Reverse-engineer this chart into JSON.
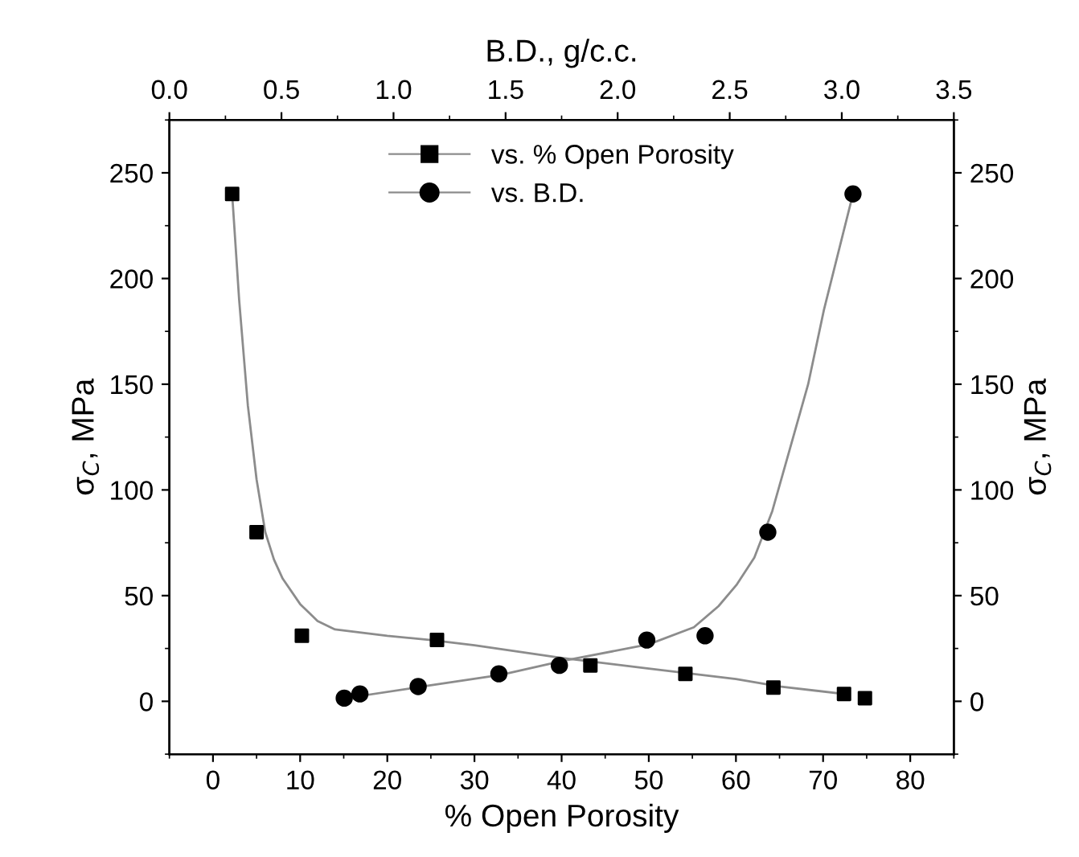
{
  "chart_data": {
    "type": "scatter",
    "xlabel": "% Open Porosity",
    "x2label": "B.D., g/c.c.",
    "ylabel": "σ$_{C}$, MPa",
    "y2label": "σ$_{C}$, MPa",
    "xlim": [
      -5,
      85
    ],
    "xticks": [
      0,
      10,
      20,
      30,
      40,
      50,
      60,
      70,
      80
    ],
    "x2lim": [
      0,
      3.5
    ],
    "x2ticks": [
      {
        "value": 0,
        "label": "0.0"
      },
      0.5,
      {
        "value": 1,
        "label": "1.0"
      },
      1.5,
      {
        "value": 2,
        "label": "2.0"
      },
      2.5,
      {
        "value": 3,
        "label": "3.0"
      },
      3.5
    ],
    "ylim": [
      -25,
      275
    ],
    "yticks": [
      0,
      50,
      100,
      150,
      200,
      250
    ],
    "y2lim": [
      -25,
      275
    ],
    "y2ticks": [
      0,
      50,
      100,
      150,
      200,
      250
    ],
    "legend": "top",
    "grid": false,
    "series": [
      {
        "name": "vs. % Open Porosity",
        "marker": "square",
        "color": "#000000",
        "x": [
          2.2,
          5,
          10.2,
          25.7,
          43.3,
          54.2,
          64.3,
          72.4,
          74.8
        ],
        "values": [
          240,
          80,
          31,
          29,
          17,
          13,
          6.5,
          3.5,
          1.5
        ]
      },
      {
        "name": "vs. B.D.",
        "marker": "circle",
        "axis": "x2",
        "color": "#000000",
        "x": [
          0.78,
          0.85,
          1.11,
          1.47,
          1.74,
          2.13,
          2.39,
          2.67,
          3.05
        ],
        "values": [
          1.5,
          3.5,
          7,
          13,
          17,
          29,
          31,
          80,
          240
        ]
      },
      {
        "type": "line",
        "color": "#8c8c8c",
        "x": [
          2.2,
          3,
          4,
          5,
          6,
          7,
          8,
          10,
          12,
          14,
          20,
          25,
          30,
          40,
          50,
          60,
          65,
          72.4
        ],
        "values": [
          240,
          190,
          140,
          105,
          80,
          67,
          58,
          46,
          38,
          34,
          31,
          29,
          26.5,
          20.5,
          15.5,
          10.5,
          7,
          3.5
        ]
      },
      {
        "type": "line",
        "axis": "x2",
        "color": "#8c8c8c",
        "x": [
          0.85,
          1.16,
          1.48,
          1.75,
          2.14,
          2.34,
          2.45,
          2.53,
          2.61,
          2.69,
          2.77,
          2.85,
          2.92,
          3.05
        ],
        "values": [
          2.5,
          7.5,
          12.5,
          19,
          27,
          35,
          45,
          55,
          68,
          90,
          120,
          150,
          185,
          240
        ]
      }
    ]
  }
}
